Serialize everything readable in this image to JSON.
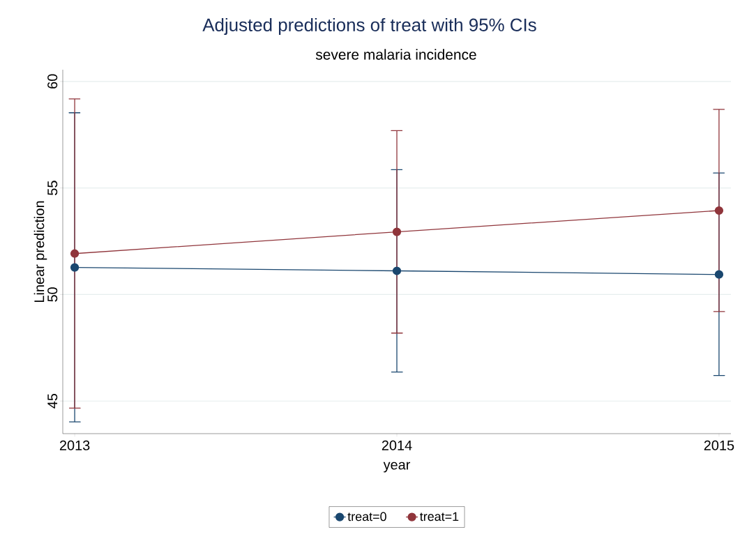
{
  "chart_data": {
    "type": "line",
    "title": "Adjusted predictions of treat with 95% CIs",
    "subtitle": "severe malaria incidence",
    "xlabel": "year",
    "ylabel": "Linear prediction",
    "x": [
      2013,
      2014,
      2015
    ],
    "series": [
      {
        "name": "treat=0",
        "color": "#1a476f",
        "values": [
          51.27,
          51.11,
          50.94
        ],
        "errors": [
          [
            44.02,
            58.53
          ],
          [
            46.36,
            55.86
          ],
          [
            46.2,
            55.7
          ]
        ]
      },
      {
        "name": "treat=1",
        "color": "#90353b",
        "values": [
          51.92,
          52.94,
          53.94
        ],
        "errors": [
          [
            44.67,
            59.18
          ],
          [
            48.19,
            57.69
          ],
          [
            49.2,
            58.69
          ]
        ]
      }
    ],
    "xlim": [
      2012.963,
      2015.037
    ],
    "xticks": [
      2013,
      2014,
      2015
    ],
    "ylim": [
      43.47,
      60.55
    ],
    "yticks": [
      45,
      50,
      55,
      60
    ],
    "grid": "y",
    "legend": "bottom",
    "marker": "circle",
    "line_style": "solid"
  }
}
